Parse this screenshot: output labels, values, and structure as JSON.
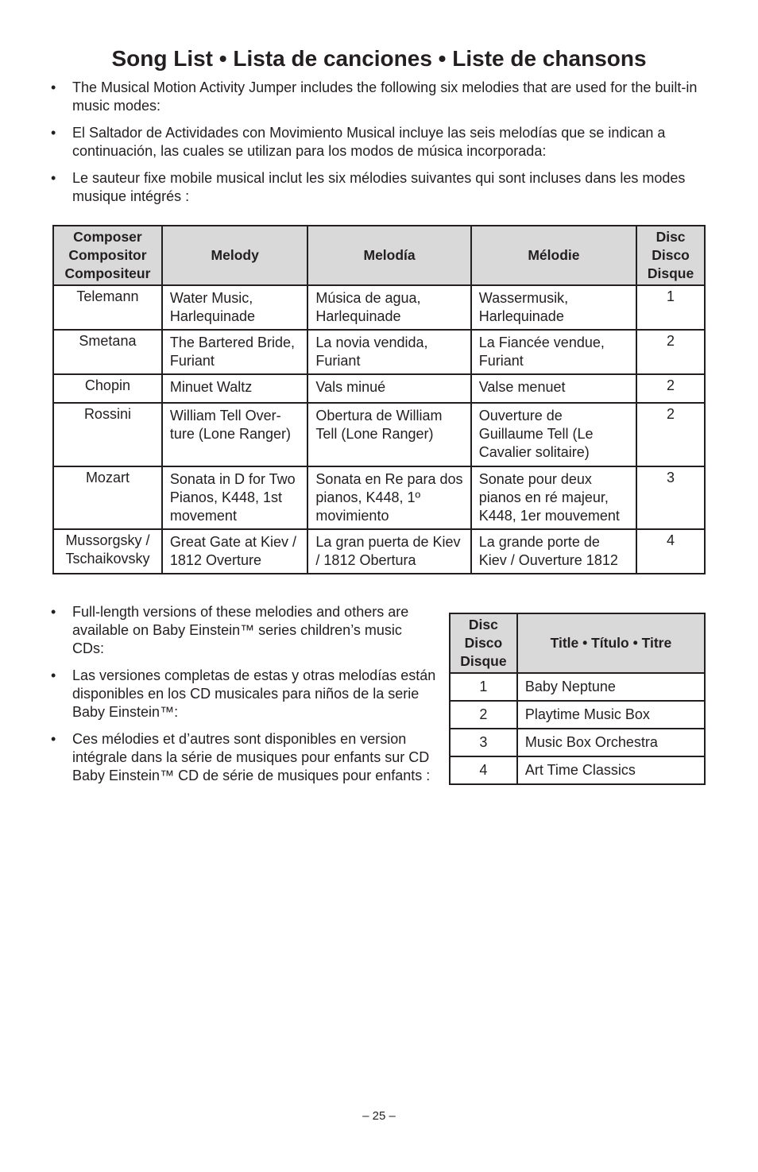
{
  "title": "Song List  •  Lista de canciones  •  Liste de chansons",
  "intro_bullets": [
    "The Musical Motion Activity Jumper includes the following six melodies that are used for the built-in music modes:",
    "El Saltador de Actividades con Movimiento Musical incluye las seis melodías que se indican a continuación, las cuales se utilizan para los modos de música incorporada:",
    "Le sauteur fixe mobile musical inclut les six mélodies suivantes qui sont incluses dans les modes musique intégrés :"
  ],
  "song_table": {
    "headers": [
      "Composer\nCompositor\nCompositeur",
      "Melody",
      "Melodía",
      "Mélodie",
      "Disc\nDisco\nDisque"
    ],
    "rows": [
      [
        "Telemann",
        "Water Music, Harlequinade",
        "Música de agua, Harlequinade",
        "Wassermusik, Harlequinade",
        "1"
      ],
      [
        "Smetana",
        "The Bartered Bride, Furiant",
        "La novia vendida, Furiant",
        "La Fiancée vendue, Furiant",
        "2"
      ],
      [
        "Chopin",
        "Minuet Waltz",
        "Vals minué",
        "Valse menuet",
        "2"
      ],
      [
        "Rossini",
        "William Tell Over-ture (Lone Ranger)",
        "Obertura de William Tell (Lone Ranger)",
        "Ouverture de Guillaume Tell (Le Cavalier solitaire)",
        "2"
      ],
      [
        "Mozart",
        "Sonata in D for Two Pianos, K448, 1st movement",
        "Sonata en Re para dos pianos, K448, 1º movimiento",
        "Sonate pour deux pianos en ré majeur, K448, 1er mouvement",
        "3"
      ],
      [
        "Mussorgsky / Tschaikovsky",
        "Great Gate at Kiev / 1812 Overture",
        "La gran puerta de Kiev  / 1812 Obertura",
        "La grande porte de Kiev / Ouverture 1812",
        "4"
      ]
    ]
  },
  "more_bullets": [
    "Full-length versions of these melodies and others are available on Baby Einstein™ series children’s music CDs:",
    "Las versiones completas de estas y otras melodías están disponibles en los CD musicales para niños de la serie Baby Einstein™:",
    "Ces mélodies et d’autres sont disponibles en version intégrale dans la série de musiques pour enfants sur CD Baby Einstein™ CD de série de musiques pour enfants :"
  ],
  "disc_table": {
    "headers": [
      "Disc\nDisco\nDisque",
      "Title  •  Título  •  Titre"
    ],
    "rows": [
      [
        "1",
        "Baby Neptune"
      ],
      [
        "2",
        "Playtime Music Box"
      ],
      [
        "3",
        "Music Box Orchestra"
      ],
      [
        "4",
        "Art Time Classics"
      ]
    ]
  },
  "page_number": "– 25 –",
  "colors": {
    "text": "#231f20",
    "header_bg": "#d9d9d9"
  }
}
